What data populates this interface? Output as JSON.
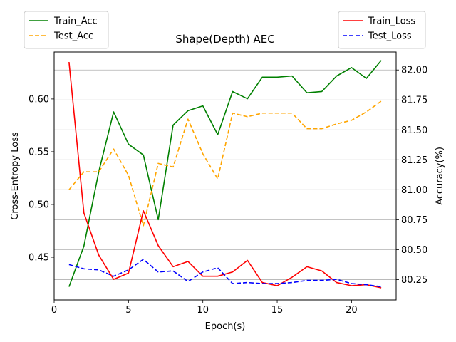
{
  "chart_data": {
    "type": "line",
    "title": "Shape(Depth) AEC",
    "xlabel": "Epoch(s)",
    "ylabel_left": "Cross-Entropy Loss",
    "ylabel_right": "Accuracy(%)",
    "xlim": [
      0,
      23
    ],
    "ylim_left": [
      0.4095,
      0.6445
    ],
    "ylim_right": [
      80.08,
      82.15
    ],
    "x_ticks": [
      0,
      5,
      10,
      15,
      20
    ],
    "y_left_ticks": [
      0.45,
      0.5,
      0.55,
      0.6
    ],
    "y_right_ticks": [
      80.25,
      80.5,
      80.75,
      81.0,
      81.25,
      81.5,
      81.75,
      82.0
    ],
    "grid": "horizontal lines at right-axis ticks",
    "legends": [
      {
        "position": "top-left",
        "entries": [
          "Train_Acc",
          "Test_Acc"
        ]
      },
      {
        "position": "top-right",
        "entries": [
          "Train_Loss",
          "Test_Loss"
        ]
      }
    ],
    "x": [
      1,
      2,
      3,
      4,
      5,
      6,
      7,
      8,
      9,
      10,
      11,
      12,
      13,
      14,
      15,
      16,
      17,
      18,
      19,
      20,
      21,
      22
    ],
    "series": [
      {
        "name": "Train_Acc",
        "axis": "right",
        "color": "#008000",
        "dash": "solid",
        "values": [
          80.19,
          80.53,
          81.15,
          81.65,
          81.38,
          81.29,
          80.75,
          81.54,
          81.66,
          81.7,
          81.46,
          81.82,
          81.76,
          81.94,
          81.94,
          81.95,
          81.81,
          81.82,
          81.95,
          82.02,
          81.93,
          82.08
        ]
      },
      {
        "name": "Test_Acc",
        "axis": "right",
        "color": "#ffa500",
        "dash": "dashed",
        "values": [
          81.0,
          81.15,
          81.15,
          81.34,
          81.12,
          80.7,
          81.22,
          81.19,
          81.59,
          81.3,
          81.09,
          81.64,
          81.61,
          81.64,
          81.64,
          81.64,
          81.51,
          81.51,
          81.55,
          81.58,
          81.65,
          81.74
        ]
      },
      {
        "name": "Train_Loss",
        "axis": "left",
        "color": "#ff0000",
        "dash": "solid",
        "values": [
          0.635,
          0.492,
          0.452,
          0.429,
          0.435,
          0.494,
          0.461,
          0.441,
          0.446,
          0.432,
          0.432,
          0.436,
          0.447,
          0.426,
          0.423,
          0.431,
          0.441,
          0.437,
          0.426,
          0.423,
          0.424,
          0.421
        ]
      },
      {
        "name": "Test_Loss",
        "axis": "left",
        "color": "#0000ff",
        "dash": "dashed",
        "values": [
          0.443,
          0.439,
          0.438,
          0.432,
          0.438,
          0.448,
          0.436,
          0.437,
          0.427,
          0.436,
          0.44,
          0.425,
          0.426,
          0.425,
          0.425,
          0.426,
          0.428,
          0.428,
          0.429,
          0.425,
          0.424,
          0.422
        ]
      }
    ]
  }
}
